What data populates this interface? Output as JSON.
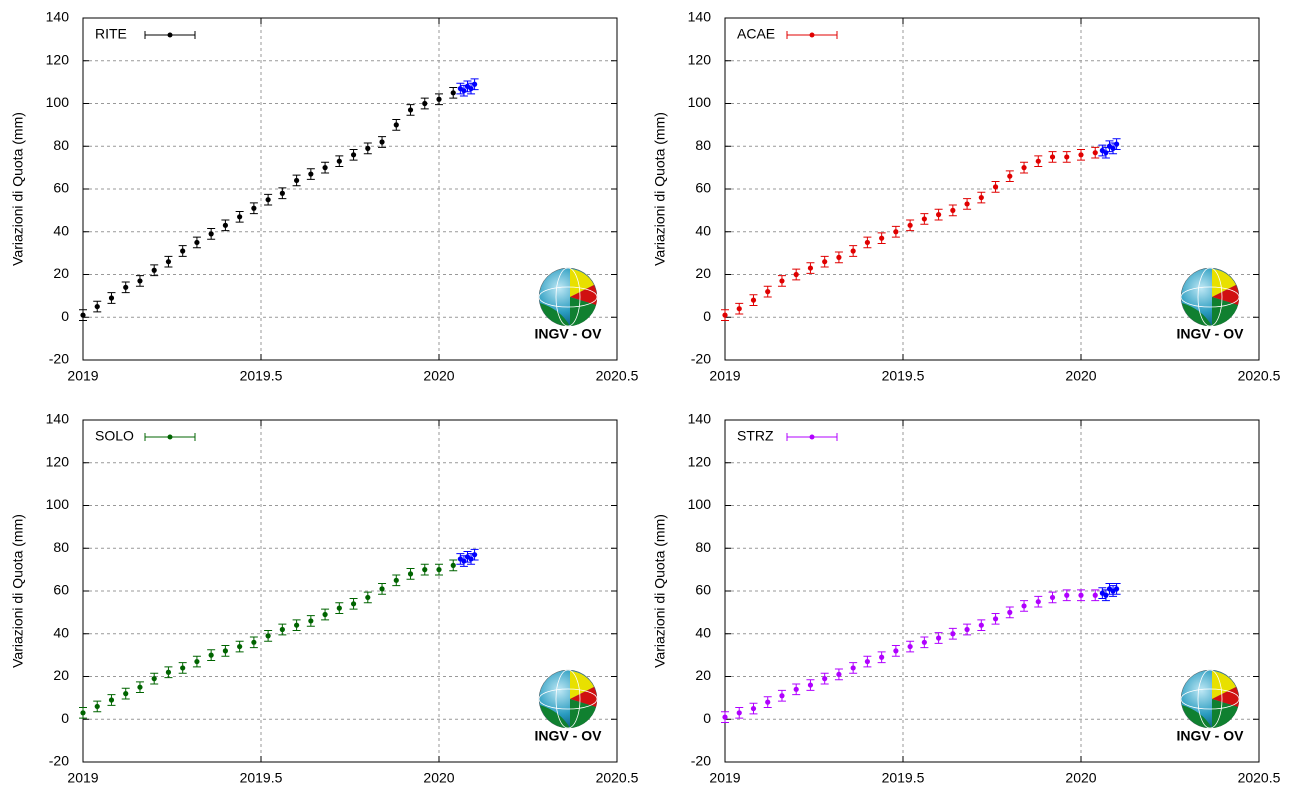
{
  "logo_text": "INGV - OV",
  "chart_data": [
    {
      "type": "scatter",
      "ylabel": "Variazioni di Quota (mm)",
      "xlim": [
        2019,
        2020.5
      ],
      "xticks": [
        2019,
        2019.5,
        2020,
        2020.5
      ],
      "ylim": [
        -20,
        140
      ],
      "yticks": [
        -20,
        0,
        20,
        40,
        60,
        80,
        100,
        120,
        140
      ],
      "grid": true,
      "error": 2.5,
      "series": [
        {
          "name": "RITE",
          "color": "#000000",
          "x": [
            2019,
            2019.04,
            2019.08,
            2019.12,
            2019.16,
            2019.2,
            2019.24,
            2019.28,
            2019.32,
            2019.36,
            2019.4,
            2019.44,
            2019.48,
            2019.52,
            2019.56,
            2019.6,
            2019.64,
            2019.68,
            2019.72,
            2019.76,
            2019.8,
            2019.84,
            2019.88,
            2019.92,
            2019.96,
            2020,
            2020.04
          ],
          "values": [
            1,
            5,
            9,
            14,
            17,
            22,
            26,
            31,
            35,
            39,
            43,
            47,
            51,
            55,
            58,
            64,
            67,
            70,
            73,
            76,
            79,
            82,
            90,
            97,
            100,
            102,
            105
          ]
        },
        {
          "color": "#0000ff",
          "x": [
            2020.06,
            2020.07,
            2020.08,
            2020.09,
            2020.1
          ],
          "values": [
            107,
            106,
            108,
            107,
            109
          ]
        }
      ]
    },
    {
      "type": "scatter",
      "ylabel": "Variazioni di Quota (mm)",
      "xlim": [
        2019,
        2020.5
      ],
      "xticks": [
        2019,
        2019.5,
        2020,
        2020.5
      ],
      "ylim": [
        -20,
        140
      ],
      "yticks": [
        -20,
        0,
        20,
        40,
        60,
        80,
        100,
        120,
        140
      ],
      "grid": true,
      "error": 2.5,
      "series": [
        {
          "name": "ACAE",
          "color": "#e00000",
          "x": [
            2019,
            2019.04,
            2019.08,
            2019.12,
            2019.16,
            2019.2,
            2019.24,
            2019.28,
            2019.32,
            2019.36,
            2019.4,
            2019.44,
            2019.48,
            2019.52,
            2019.56,
            2019.6,
            2019.64,
            2019.68,
            2019.72,
            2019.76,
            2019.8,
            2019.84,
            2019.88,
            2019.92,
            2019.96,
            2020,
            2020.04
          ],
          "values": [
            1,
            4,
            8,
            12,
            17,
            20,
            23,
            26,
            28,
            31,
            35,
            37,
            40,
            43,
            46,
            48,
            50,
            53,
            56,
            61,
            66,
            70,
            73,
            75,
            75,
            76,
            77
          ]
        },
        {
          "color": "#0000ff",
          "x": [
            2020.06,
            2020.07,
            2020.08,
            2020.09,
            2020.1
          ],
          "values": [
            78,
            77,
            80,
            79,
            81
          ]
        }
      ]
    },
    {
      "type": "scatter",
      "ylabel": "Variazioni di Quota (mm)",
      "xlim": [
        2019,
        2020.5
      ],
      "xticks": [
        2019,
        2019.5,
        2020,
        2020.5
      ],
      "ylim": [
        -20,
        140
      ],
      "yticks": [
        -20,
        0,
        20,
        40,
        60,
        80,
        100,
        120,
        140
      ],
      "grid": true,
      "error": 2.5,
      "series": [
        {
          "name": "SOLO",
          "color": "#006400",
          "x": [
            2019,
            2019.04,
            2019.08,
            2019.12,
            2019.16,
            2019.2,
            2019.24,
            2019.28,
            2019.32,
            2019.36,
            2019.4,
            2019.44,
            2019.48,
            2019.52,
            2019.56,
            2019.6,
            2019.64,
            2019.68,
            2019.72,
            2019.76,
            2019.8,
            2019.84,
            2019.88,
            2019.92,
            2019.96,
            2020,
            2020.04
          ],
          "values": [
            3,
            6,
            9,
            12,
            15,
            19,
            22,
            24,
            27,
            30,
            32,
            34,
            36,
            39,
            42,
            44,
            46,
            49,
            52,
            54,
            57,
            61,
            65,
            68,
            70,
            70,
            72
          ]
        },
        {
          "color": "#0000ff",
          "x": [
            2020.06,
            2020.07,
            2020.08,
            2020.09,
            2020.1
          ],
          "values": [
            75,
            74,
            76,
            75,
            77
          ]
        }
      ]
    },
    {
      "type": "scatter",
      "ylabel": "Variazioni di Quota (mm)",
      "xlim": [
        2019,
        2020.5
      ],
      "xticks": [
        2019,
        2019.5,
        2020,
        2020.5
      ],
      "ylim": [
        -20,
        140
      ],
      "yticks": [
        -20,
        0,
        20,
        40,
        60,
        80,
        100,
        120,
        140
      ],
      "grid": true,
      "error": 2.5,
      "series": [
        {
          "name": "STRZ",
          "color": "#b000ff",
          "x": [
            2019,
            2019.04,
            2019.08,
            2019.12,
            2019.16,
            2019.2,
            2019.24,
            2019.28,
            2019.32,
            2019.36,
            2019.4,
            2019.44,
            2019.48,
            2019.52,
            2019.56,
            2019.6,
            2019.64,
            2019.68,
            2019.72,
            2019.76,
            2019.8,
            2019.84,
            2019.88,
            2019.92,
            2019.96,
            2020,
            2020.04
          ],
          "values": [
            1,
            3,
            5,
            8,
            11,
            14,
            16,
            19,
            21,
            24,
            27,
            29,
            32,
            34,
            36,
            38,
            40,
            42,
            44,
            47,
            50,
            53,
            55,
            57,
            58,
            58,
            58
          ]
        },
        {
          "color": "#0000ff",
          "x": [
            2020.06,
            2020.07,
            2020.08,
            2020.09,
            2020.1
          ],
          "values": [
            59,
            58,
            61,
            60,
            61
          ]
        }
      ]
    }
  ]
}
